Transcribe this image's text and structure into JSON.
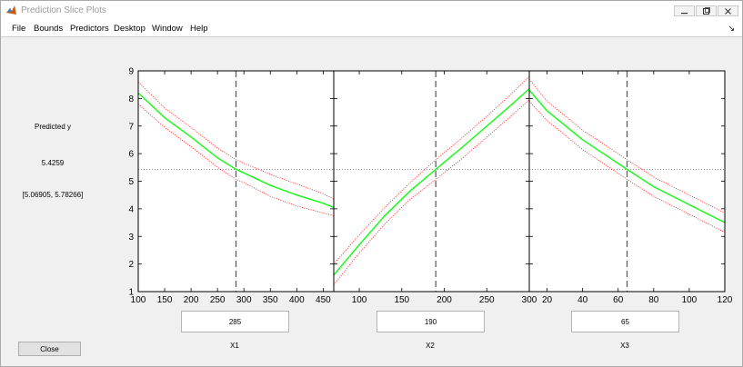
{
  "window": {
    "title": "Prediction Slice Plots"
  },
  "menu": {
    "items": [
      "File",
      "Bounds",
      "Predictors",
      "Desktop",
      "Window",
      "Help"
    ],
    "corner_icon": "dock-arrow-icon"
  },
  "side_panel": {
    "predicted_label": "Predicted y",
    "predicted_value": "5.4259",
    "interval": "[5.06905, 5.78266]"
  },
  "inputs": {
    "x1_value": "285",
    "x2_value": "190",
    "x3_value": "65"
  },
  "x_labels": {
    "x1": "X1",
    "x2": "X2",
    "x3": "X3"
  },
  "buttons": {
    "close_label": "Close"
  },
  "colors": {
    "fit_line": "#00ff00",
    "bounds": "#ff0000",
    "reference": "#555555"
  },
  "chart_data": [
    {
      "type": "line",
      "predictor": "X1",
      "xlim": [
        100,
        470
      ],
      "ylim": [
        1,
        9
      ],
      "xticks": [
        100,
        150,
        200,
        250,
        300,
        350,
        400,
        450
      ],
      "yticks": [
        1,
        2,
        3,
        4,
        5,
        6,
        7,
        8,
        9
      ],
      "x": [
        100,
        150,
        200,
        250,
        285,
        300,
        350,
        400,
        450,
        470
      ],
      "y": [
        8.2,
        7.3,
        6.6,
        5.85,
        5.43,
        5.3,
        4.85,
        4.5,
        4.2,
        4.05
      ],
      "lower": [
        7.8,
        6.95,
        6.25,
        5.5,
        5.07,
        4.95,
        4.45,
        4.1,
        3.85,
        3.75
      ],
      "upper": [
        8.6,
        7.65,
        6.95,
        6.2,
        5.78,
        5.65,
        5.25,
        4.9,
        4.55,
        4.35
      ],
      "current_x": 285,
      "current_y": 5.4259
    },
    {
      "type": "line",
      "predictor": "X2",
      "xlim": [
        70,
        300
      ],
      "ylim": [
        1,
        9
      ],
      "xticks": [
        100,
        150,
        200,
        250,
        300
      ],
      "yticks": [
        1,
        2,
        3,
        4,
        5,
        6,
        7,
        8,
        9
      ],
      "x": [
        70,
        100,
        130,
        160,
        190,
        220,
        250,
        280,
        300
      ],
      "y": [
        1.6,
        2.7,
        3.75,
        4.65,
        5.43,
        6.2,
        7.0,
        7.8,
        8.35
      ],
      "lower": [
        1.25,
        2.4,
        3.45,
        4.35,
        5.07,
        5.8,
        6.6,
        7.4,
        7.95
      ],
      "upper": [
        2.0,
        3.05,
        4.05,
        4.95,
        5.78,
        6.55,
        7.35,
        8.2,
        8.8
      ],
      "current_x": 190,
      "current_y": 5.4259
    },
    {
      "type": "line",
      "predictor": "X3",
      "xlim": [
        10,
        120
      ],
      "ylim": [
        1,
        9
      ],
      "xticks": [
        20,
        40,
        60,
        80,
        100,
        120
      ],
      "yticks": [
        1,
        2,
        3,
        4,
        5,
        6,
        7,
        8,
        9
      ],
      "x": [
        10,
        20,
        40,
        65,
        80,
        100,
        120
      ],
      "y": [
        8.3,
        7.55,
        6.5,
        5.43,
        4.8,
        4.15,
        3.5
      ],
      "lower": [
        7.9,
        7.2,
        6.15,
        5.07,
        4.45,
        3.8,
        3.15
      ],
      "upper": [
        8.7,
        7.9,
        6.85,
        5.78,
        5.15,
        4.5,
        3.85
      ],
      "current_x": 65,
      "current_y": 5.4259
    }
  ]
}
